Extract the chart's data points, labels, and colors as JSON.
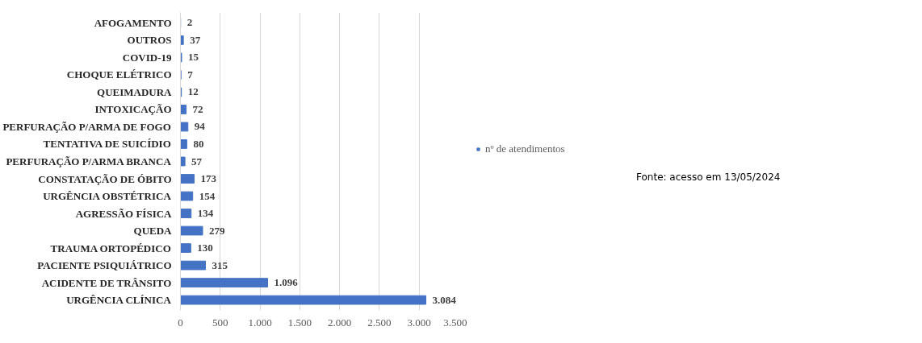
{
  "chart_data": {
    "type": "bar",
    "orientation": "horizontal",
    "categories": [
      "AFOGAMENTO",
      "OUTROS",
      "COVID-19",
      "CHOQUE ELÉTRICO",
      "QUEIMADURA",
      "INTOXICAÇÃO",
      "PERFURAÇÃO P/ARMA DE FOGO",
      "TENTATIVA DE SUICÍDIO",
      "PERFURAÇÃO P/ARMA BRANCA",
      "CONSTATAÇÃO DE ÓBITO",
      "URGÊNCIA OBSTÉTRICA",
      "AGRESSÃO FÍSICA",
      "QUEDA",
      "TRAUMA ORTOPÉDICO",
      "PACIENTE PSIQUIÁTRICO",
      "ACIDENTE DE TRÂNSITO",
      "URGÊNCIA CLÍNICA"
    ],
    "series": [
      {
        "name": "nº de atendimentos",
        "color": "#4472c4",
        "values": [
          2,
          37,
          15,
          7,
          12,
          72,
          94,
          80,
          57,
          173,
          154,
          134,
          279,
          130,
          315,
          1096,
          3084
        ],
        "value_labels": [
          "2",
          "37",
          "15",
          "7",
          "12",
          "72",
          "94",
          "80",
          "57",
          "173",
          "154",
          "134",
          "279",
          "130",
          "315",
          "1.096",
          "3.084"
        ]
      }
    ],
    "xlim": [
      0,
      3500
    ],
    "xticks": [
      0,
      500,
      {
        "value": 1000,
        "label": "1.000"
      },
      {
        "value": 1500,
        "label": "1.500"
      },
      {
        "value": 2000,
        "label": "2.000"
      },
      {
        "value": 2500,
        "label": "2.500"
      },
      {
        "value": 3000,
        "label": "3.000"
      },
      {
        "value": 3500,
        "label": "3.500"
      }
    ],
    "grid": "x",
    "legend": "right",
    "annotations": [
      "Fonte: acesso em 13/05/2024"
    ]
  }
}
